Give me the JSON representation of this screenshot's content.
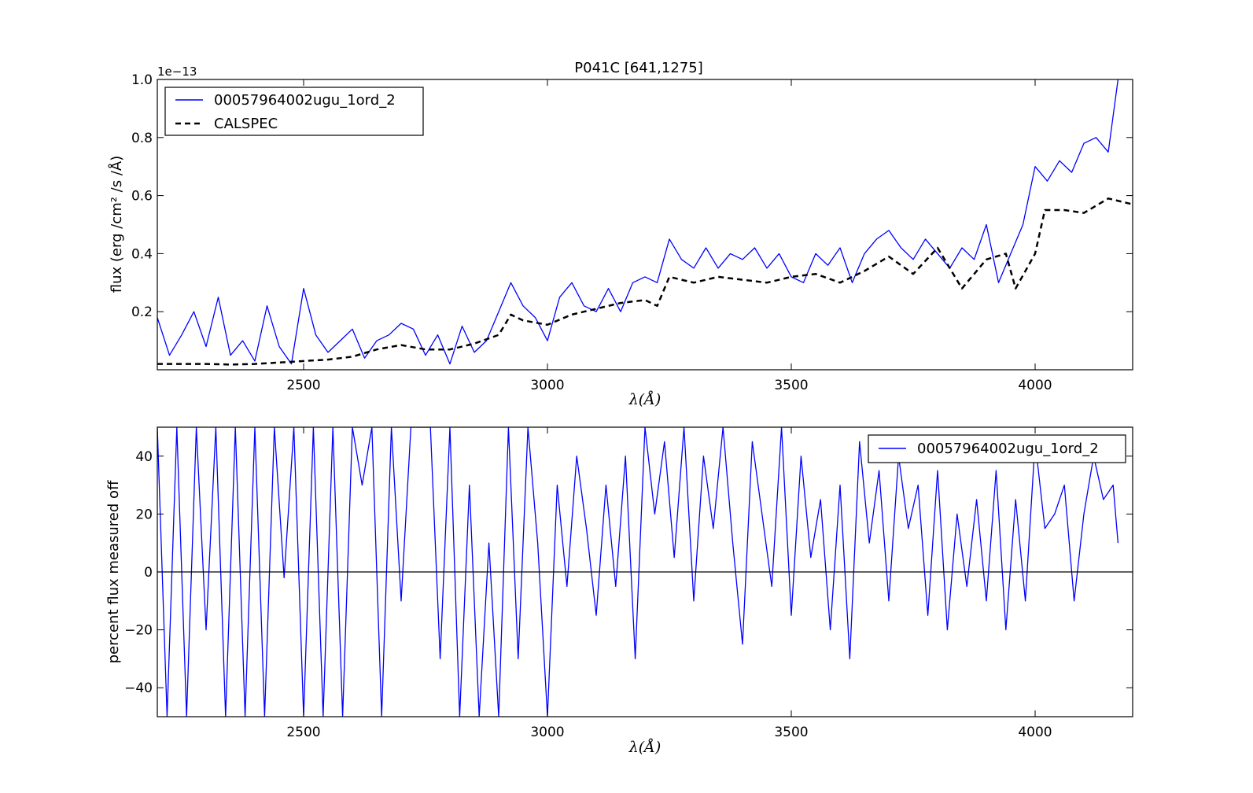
{
  "chart_data": [
    {
      "type": "line",
      "title": "P041C [641,1275]",
      "xlabel": "λ(Å)",
      "ylabel": "flux (erg /cm² /s /Å)",
      "y_offset_text": "1e−13",
      "xlim": [
        2200,
        4200
      ],
      "ylim": [
        0.0,
        1.0
      ],
      "x_ticks": [
        2500,
        3000,
        3500,
        4000
      ],
      "y_ticks": [
        0.2,
        0.4,
        0.6,
        0.8,
        1.0
      ],
      "x_tick_labels": [
        "2500",
        "3000",
        "3500",
        "4000"
      ],
      "y_tick_labels": [
        "0.2",
        "0.4",
        "0.6",
        "0.8",
        "1.0"
      ],
      "grid": false,
      "legend_position": "upper-left",
      "series": [
        {
          "name": "00057964002ugu_1ord_2",
          "color": "#0000ff",
          "style": "solid",
          "x": [
            2200,
            2225,
            2250,
            2275,
            2300,
            2325,
            2350,
            2375,
            2400,
            2425,
            2450,
            2475,
            2500,
            2525,
            2550,
            2575,
            2600,
            2625,
            2650,
            2675,
            2700,
            2725,
            2750,
            2775,
            2800,
            2825,
            2850,
            2875,
            2900,
            2925,
            2950,
            2975,
            3000,
            3025,
            3050,
            3075,
            3100,
            3125,
            3150,
            3175,
            3200,
            3225,
            3250,
            3275,
            3300,
            3325,
            3350,
            3375,
            3400,
            3425,
            3450,
            3475,
            3500,
            3525,
            3550,
            3575,
            3600,
            3625,
            3650,
            3675,
            3700,
            3725,
            3750,
            3775,
            3800,
            3825,
            3850,
            3875,
            3900,
            3925,
            3950,
            3975,
            4000,
            4025,
            4050,
            4075,
            4100,
            4125,
            4150,
            4170
          ],
          "values": [
            0.18,
            0.05,
            0.12,
            0.2,
            0.08,
            0.25,
            0.05,
            0.1,
            0.03,
            0.22,
            0.08,
            0.02,
            0.28,
            0.12,
            0.06,
            0.1,
            0.14,
            0.04,
            0.1,
            0.12,
            0.16,
            0.14,
            0.05,
            0.12,
            0.02,
            0.15,
            0.06,
            0.1,
            0.2,
            0.3,
            0.22,
            0.18,
            0.1,
            0.25,
            0.3,
            0.22,
            0.2,
            0.28,
            0.2,
            0.3,
            0.32,
            0.3,
            0.45,
            0.38,
            0.35,
            0.42,
            0.35,
            0.4,
            0.38,
            0.42,
            0.35,
            0.4,
            0.32,
            0.3,
            0.4,
            0.36,
            0.42,
            0.3,
            0.4,
            0.45,
            0.48,
            0.42,
            0.38,
            0.45,
            0.4,
            0.35,
            0.42,
            0.38,
            0.5,
            0.3,
            0.4,
            0.5,
            0.7,
            0.65,
            0.72,
            0.68,
            0.78,
            0.8,
            0.75,
            1.0
          ]
        },
        {
          "name": "CALSPEC",
          "color": "#000000",
          "style": "dashed",
          "x": [
            2200,
            2250,
            2300,
            2350,
            2400,
            2450,
            2500,
            2550,
            2600,
            2650,
            2700,
            2750,
            2800,
            2850,
            2900,
            2925,
            2950,
            3000,
            3050,
            3100,
            3150,
            3200,
            3225,
            3250,
            3300,
            3350,
            3400,
            3450,
            3500,
            3550,
            3600,
            3650,
            3700,
            3750,
            3800,
            3850,
            3900,
            3940,
            3960,
            4000,
            4020,
            4060,
            4100,
            4150,
            4200
          ],
          "values": [
            0.02,
            0.02,
            0.02,
            0.018,
            0.02,
            0.025,
            0.03,
            0.035,
            0.045,
            0.07,
            0.085,
            0.07,
            0.07,
            0.09,
            0.12,
            0.19,
            0.17,
            0.155,
            0.19,
            0.21,
            0.23,
            0.24,
            0.22,
            0.32,
            0.3,
            0.32,
            0.31,
            0.3,
            0.32,
            0.33,
            0.3,
            0.34,
            0.39,
            0.33,
            0.42,
            0.28,
            0.38,
            0.4,
            0.28,
            0.4,
            0.55,
            0.55,
            0.54,
            0.59,
            0.57
          ]
        }
      ]
    },
    {
      "type": "line",
      "title": "",
      "xlabel": "λ(Å)",
      "ylabel": "percent flux measured off",
      "xlim": [
        2200,
        4200
      ],
      "ylim": [
        -50,
        50
      ],
      "x_ticks": [
        2500,
        3000,
        3500,
        4000
      ],
      "y_ticks": [
        -40,
        -20,
        0,
        20,
        40
      ],
      "x_tick_labels": [
        "2500",
        "3000",
        "3500",
        "4000"
      ],
      "y_tick_labels": [
        "−40",
        "−20",
        "0",
        "20",
        "40"
      ],
      "grid": false,
      "legend_position": "upper-right",
      "reference_line": 0,
      "series": [
        {
          "name": "00057964002ugu_1ord_2",
          "color": "#0000ff",
          "style": "solid",
          "x": [
            2200,
            2220,
            2240,
            2260,
            2280,
            2300,
            2320,
            2340,
            2360,
            2380,
            2400,
            2420,
            2440,
            2460,
            2480,
            2500,
            2520,
            2540,
            2560,
            2580,
            2600,
            2620,
            2640,
            2660,
            2680,
            2700,
            2720,
            2740,
            2760,
            2780,
            2800,
            2820,
            2840,
            2860,
            2880,
            2900,
            2920,
            2940,
            2960,
            2980,
            3000,
            3020,
            3040,
            3060,
            3080,
            3100,
            3120,
            3140,
            3160,
            3180,
            3200,
            3220,
            3240,
            3260,
            3280,
            3300,
            3320,
            3340,
            3360,
            3380,
            3400,
            3420,
            3440,
            3460,
            3480,
            3500,
            3520,
            3540,
            3560,
            3580,
            3600,
            3620,
            3640,
            3660,
            3680,
            3700,
            3720,
            3740,
            3760,
            3780,
            3800,
            3820,
            3840,
            3860,
            3880,
            3900,
            3920,
            3940,
            3960,
            3980,
            4000,
            4020,
            4040,
            4060,
            4080,
            4100,
            4120,
            4140,
            4160,
            4170
          ],
          "values": [
            50,
            -50,
            50,
            -50,
            50,
            -20,
            50,
            -50,
            50,
            -50,
            50,
            -50,
            50,
            -2,
            50,
            -50,
            50,
            -50,
            50,
            -50,
            50,
            30,
            50,
            -50,
            50,
            -10,
            50,
            50,
            50,
            -30,
            50,
            -50,
            30,
            -50,
            10,
            -50,
            50,
            -30,
            50,
            10,
            -50,
            30,
            -5,
            40,
            15,
            -15,
            30,
            -5,
            40,
            -30,
            50,
            20,
            45,
            5,
            50,
            -10,
            40,
            15,
            50,
            10,
            -25,
            45,
            20,
            -5,
            50,
            -15,
            40,
            5,
            25,
            -20,
            30,
            -30,
            45,
            10,
            35,
            -10,
            40,
            15,
            30,
            -15,
            35,
            -20,
            20,
            -5,
            25,
            -10,
            35,
            -20,
            25,
            -10,
            45,
            15,
            20,
            30,
            -10,
            20,
            40,
            25,
            30,
            10
          ]
        }
      ]
    }
  ]
}
